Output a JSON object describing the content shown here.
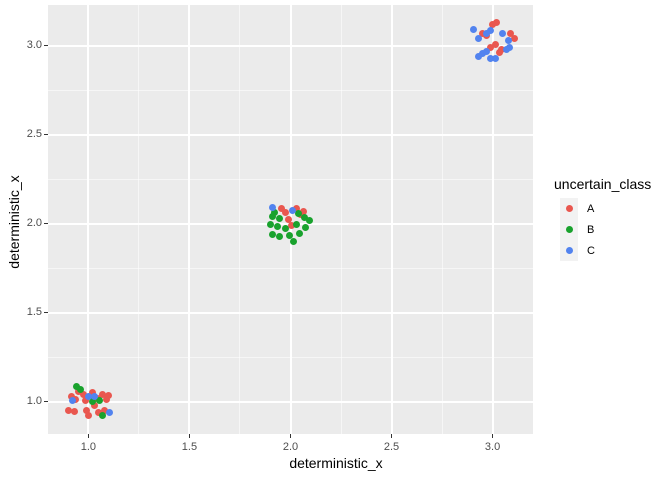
{
  "chart_data": {
    "type": "scatter",
    "title": "",
    "xlabel": "deterministic_x",
    "ylabel": "deterministic_x",
    "legend_title": "uncertain_class",
    "legend_position": "right",
    "grid": "major and minor white gridlines on gray panel",
    "panel_bg": "#ebebeb",
    "tick_text_color": "#4d4d4d",
    "x_domain": [
      0.8,
      3.2
    ],
    "y_domain": [
      0.82,
      3.23
    ],
    "x_ticks": {
      "values": [
        1.0,
        1.5,
        2.0,
        2.5,
        3.0
      ],
      "labels": [
        "1.0",
        "1.5",
        "2.0",
        "2.5",
        "3.0"
      ]
    },
    "y_ticks": {
      "values": [
        1.0,
        1.5,
        2.0,
        2.5,
        3.0
      ],
      "labels": [
        "1.0",
        "1.5",
        "2.0",
        "2.5",
        "3.0"
      ]
    },
    "x_minor_ticks": [
      1.25,
      1.75,
      2.25,
      2.75
    ],
    "y_minor_ticks": [
      1.25,
      1.75,
      2.25,
      2.75
    ],
    "series": [
      {
        "name": "A",
        "color": "#e9574f",
        "points": [
          [
            0.915,
            1.03
          ],
          [
            0.935,
            1.015
          ],
          [
            0.952,
            1.058
          ],
          [
            0.975,
            1.04
          ],
          [
            0.985,
            1.01
          ],
          [
            1.018,
            1.052
          ],
          [
            1.045,
            1.022
          ],
          [
            1.068,
            1.042
          ],
          [
            1.088,
            1.012
          ],
          [
            1.1,
            1.038
          ],
          [
            0.901,
            0.952
          ],
          [
            0.93,
            0.946
          ],
          [
            0.992,
            0.952
          ],
          [
            1.0,
            0.922
          ],
          [
            1.048,
            0.942
          ],
          [
            1.078,
            0.952
          ],
          [
            1.028,
            0.978
          ],
          [
            1.955,
            2.085
          ],
          [
            1.975,
            2.065
          ],
          [
            2.03,
            2.085
          ],
          [
            2.062,
            2.07
          ],
          [
            1.992,
            2.025
          ],
          [
            2.005,
            1.99
          ],
          [
            2.048,
            2.052
          ],
          [
            2.95,
            3.068
          ],
          [
            2.972,
            3.06
          ],
          [
            3.0,
            3.118
          ],
          [
            3.02,
            3.132
          ],
          [
            3.09,
            3.068
          ],
          [
            3.108,
            3.042
          ],
          [
            2.992,
            2.99
          ],
          [
            3.012,
            3.008
          ],
          [
            3.032,
            2.962
          ],
          [
            3.045,
            2.982
          ]
        ]
      },
      {
        "name": "B",
        "color": "#19a22d",
        "points": [
          [
            0.94,
            1.088
          ],
          [
            0.963,
            1.072
          ],
          [
            1.022,
            1.0
          ],
          [
            1.055,
            1.008
          ],
          [
            1.072,
            0.922
          ],
          [
            1.92,
            2.066
          ],
          [
            1.91,
            2.04
          ],
          [
            1.946,
            2.028
          ],
          [
            1.9,
            1.996
          ],
          [
            1.934,
            1.984
          ],
          [
            1.975,
            1.972
          ],
          [
            2.038,
            2.058
          ],
          [
            2.068,
            2.034
          ],
          [
            2.092,
            2.02
          ],
          [
            2.031,
            1.996
          ],
          [
            2.074,
            1.978
          ],
          [
            1.909,
            1.94
          ],
          [
            1.947,
            1.931
          ],
          [
            1.997,
            1.934
          ],
          [
            2.046,
            1.945
          ],
          [
            2.013,
            1.902
          ]
        ]
      },
      {
        "name": "C",
        "color": "#5283ef",
        "points": [
          [
            0.92,
            1.008
          ],
          [
            1.002,
            1.03
          ],
          [
            1.032,
            1.032
          ],
          [
            1.105,
            0.94
          ],
          [
            1.912,
            2.094
          ],
          [
            2.012,
            2.077
          ],
          [
            2.908,
            3.09
          ],
          [
            2.932,
            3.04
          ],
          [
            2.968,
            3.068
          ],
          [
            2.988,
            3.088
          ],
          [
            3.05,
            3.068
          ],
          [
            3.078,
            3.03
          ],
          [
            2.948,
            2.958
          ],
          [
            2.968,
            2.968
          ],
          [
            2.93,
            2.94
          ],
          [
            3.068,
            2.98
          ],
          [
            3.082,
            2.992
          ],
          [
            2.99,
            2.93
          ],
          [
            3.012,
            2.932
          ]
        ]
      }
    ]
  }
}
